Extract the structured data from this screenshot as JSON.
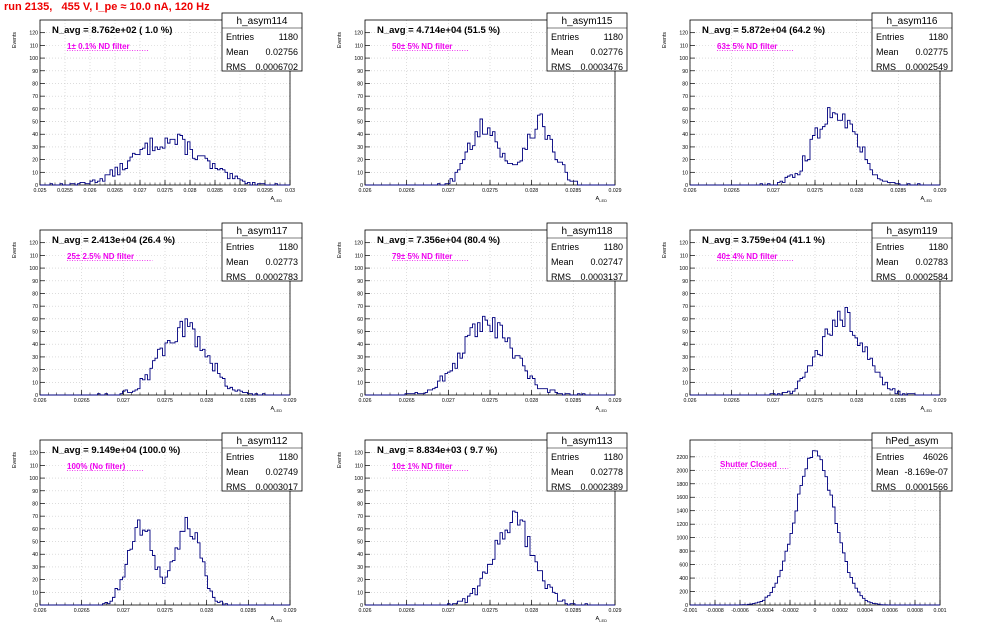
{
  "header": {
    "title": "run 2135,   455 V, I_pe ≈ 10.0 nA, 120 Hz"
  },
  "colors": {
    "histogram": "#00007f",
    "annotation": "#ee00ee",
    "title_text": "#ee0000",
    "frame": "#000000",
    "grid": "#c8c8c8"
  },
  "chart_data": [
    {
      "type": "histogram",
      "name": "h_asym114",
      "navg": "N_avg = 8.762e+02 ( 1.0 %)",
      "filter": "1± 0.1% ND filter",
      "stats": [
        [
          "Entries",
          "1180"
        ],
        [
          "Mean",
          "0.02756"
        ],
        [
          "RMS",
          "0.0006702"
        ]
      ],
      "xlabel": "A_LED",
      "ylabel": "Events",
      "xlim": [
        0.025,
        0.03
      ],
      "ylim": [
        0,
        130
      ],
      "xticks": [
        "0.025",
        "0.0255",
        "0.026",
        "0.0265",
        "0.027",
        "0.0275",
        "0.028",
        "0.0285",
        "0.029",
        "0.0295",
        "0.03"
      ],
      "yticks": [
        "0",
        "10",
        "20",
        "30",
        "40",
        "50",
        "60",
        "70",
        "80",
        "90",
        "100",
        "110",
        "120"
      ],
      "mean": 0.02756,
      "sigma": 0.00067,
      "peak": 35,
      "entries": 1180
    },
    {
      "type": "histogram",
      "name": "h_asym115",
      "navg": "N_avg = 4.714e+04 (51.5 %)",
      "filter": "50± 5% ND filter",
      "stats": [
        [
          "Entries",
          "1180"
        ],
        [
          "Mean",
          "0.02776"
        ],
        [
          "RMS",
          "0.0003476"
        ]
      ],
      "xlabel": "A_LED",
      "ylabel": "Events",
      "xlim": [
        0.026,
        0.029
      ],
      "ylim": [
        0,
        130
      ],
      "xticks": [
        "0.026",
        "0.0265",
        "0.027",
        "0.0275",
        "0.028",
        "0.0285",
        "0.029"
      ],
      "yticks": [
        "0",
        "10",
        "20",
        "30",
        "40",
        "50",
        "60",
        "70",
        "80",
        "90",
        "100",
        "110",
        "120"
      ],
      "mean": 0.02776,
      "sigma": 0.00035,
      "peak": 48,
      "entries": 1180
    },
    {
      "type": "histogram",
      "name": "h_asym116",
      "navg": "N_avg = 5.872e+04 (64.2 %)",
      "filter": "63± 5% ND filter",
      "stats": [
        [
          "Entries",
          "1180"
        ],
        [
          "Mean",
          "0.02775"
        ],
        [
          "RMS",
          "0.0002549"
        ]
      ],
      "xlabel": "A_LED",
      "ylabel": "Events",
      "xlim": [
        0.026,
        0.029
      ],
      "ylim": [
        0,
        130
      ],
      "xticks": [
        "0.026",
        "0.0265",
        "0.027",
        "0.0275",
        "0.028",
        "0.0285",
        "0.029"
      ],
      "yticks": [
        "0",
        "10",
        "20",
        "30",
        "40",
        "50",
        "60",
        "70",
        "80",
        "90",
        "100",
        "110",
        "120"
      ],
      "mean": 0.02775,
      "sigma": 0.00025,
      "peak": 60,
      "entries": 1180
    },
    {
      "type": "histogram",
      "name": "h_asym117",
      "navg": "N_avg = 2.413e+04 (26.4 %)",
      "filter": "25± 2.5% ND filter",
      "stats": [
        [
          "Entries",
          "1180"
        ],
        [
          "Mean",
          "0.02773"
        ],
        [
          "RMS",
          "0.0002783"
        ]
      ],
      "xlabel": "A_LED",
      "ylabel": "Events",
      "xlim": [
        0.026,
        0.029
      ],
      "ylim": [
        0,
        130
      ],
      "xticks": [
        "0.026",
        "0.0265",
        "0.027",
        "0.0275",
        "0.028",
        "0.0285",
        "0.029"
      ],
      "yticks": [
        "0",
        "10",
        "20",
        "30",
        "40",
        "50",
        "60",
        "70",
        "80",
        "90",
        "100",
        "110",
        "120"
      ],
      "mean": 0.02773,
      "sigma": 0.00028,
      "peak": 53,
      "entries": 1180
    },
    {
      "type": "histogram",
      "name": "h_asym118",
      "navg": "N_avg = 7.356e+04 (80.4 %)",
      "filter": "79± 5% ND filter",
      "stats": [
        [
          "Entries",
          "1180"
        ],
        [
          "Mean",
          "0.02747"
        ],
        [
          "RMS",
          "0.0003137"
        ]
      ],
      "xlabel": "A_LED",
      "ylabel": "Events",
      "xlim": [
        0.026,
        0.029
      ],
      "ylim": [
        0,
        130
      ],
      "xticks": [
        "0.026",
        "0.0265",
        "0.027",
        "0.0275",
        "0.028",
        "0.0285",
        "0.029"
      ],
      "yticks": [
        "0",
        "10",
        "20",
        "30",
        "40",
        "50",
        "60",
        "70",
        "80",
        "90",
        "100",
        "110",
        "120"
      ],
      "mean": 0.02747,
      "sigma": 0.00031,
      "peak": 55,
      "entries": 1180
    },
    {
      "type": "histogram",
      "name": "h_asym119",
      "navg": "N_avg = 3.759e+04 (41.1 %)",
      "filter": "40± 4% ND filter",
      "stats": [
        [
          "Entries",
          "1180"
        ],
        [
          "Mean",
          "0.02783"
        ],
        [
          "RMS",
          "0.0002584"
        ]
      ],
      "xlabel": "A_LED",
      "ylabel": "Events",
      "xlim": [
        0.026,
        0.029
      ],
      "ylim": [
        0,
        130
      ],
      "xticks": [
        "0.026",
        "0.0265",
        "0.027",
        "0.0275",
        "0.028",
        "0.0285",
        "0.029"
      ],
      "yticks": [
        "0",
        "10",
        "20",
        "30",
        "40",
        "50",
        "60",
        "70",
        "80",
        "90",
        "100",
        "110",
        "120"
      ],
      "mean": 0.02783,
      "sigma": 0.00026,
      "peak": 62,
      "entries": 1180
    },
    {
      "type": "histogram",
      "name": "h_asym112",
      "navg": "N_avg = 9.149e+04 (100.0 %)",
      "filter": "100% (No filter)",
      "stats": [
        [
          "Entries",
          "1180"
        ],
        [
          "Mean",
          "0.02749"
        ],
        [
          "RMS",
          "0.0003017"
        ]
      ],
      "xlabel": "A_LED",
      "ylabel": "Events",
      "xlim": [
        0.026,
        0.029
      ],
      "ylim": [
        0,
        130
      ],
      "xticks": [
        "0.026",
        "0.0265",
        "0.027",
        "0.0275",
        "0.028",
        "0.0285",
        "0.029"
      ],
      "yticks": [
        "0",
        "10",
        "20",
        "30",
        "40",
        "50",
        "60",
        "70",
        "80",
        "90",
        "100",
        "110",
        "120"
      ],
      "mean": 0.02749,
      "sigma": 0.0003,
      "peak": 63,
      "entries": 1180
    },
    {
      "type": "histogram",
      "name": "h_asym113",
      "navg": "N_avg = 8.834e+03 ( 9.7 %)",
      "filter": "10± 1% ND filter",
      "stats": [
        [
          "Entries",
          "1180"
        ],
        [
          "Mean",
          "0.02778"
        ],
        [
          "RMS",
          "0.0002389"
        ]
      ],
      "xlabel": "A_LED",
      "ylabel": "Events",
      "xlim": [
        0.026,
        0.029
      ],
      "ylim": [
        0,
        130
      ],
      "xticks": [
        "0.026",
        "0.0265",
        "0.027",
        "0.0275",
        "0.028",
        "0.0285",
        "0.029"
      ],
      "yticks": [
        "0",
        "10",
        "20",
        "30",
        "40",
        "50",
        "60",
        "70",
        "80",
        "90",
        "100",
        "110",
        "120"
      ],
      "mean": 0.02778,
      "sigma": 0.00024,
      "peak": 66,
      "entries": 1180
    },
    {
      "type": "histogram",
      "name": "hPed_asym",
      "navg": "",
      "filter": "Shutter Closed",
      "stats": [
        [
          "Entries",
          "46026"
        ],
        [
          "Mean",
          "-8.169e-07"
        ],
        [
          "RMS",
          "0.0001566"
        ]
      ],
      "xlabel": "",
      "ylabel": "",
      "xlim": [
        -0.001,
        0.001
      ],
      "ylim": [
        0,
        2450
      ],
      "xticks": [
        "-0.001",
        "-0.0008",
        "-0.0006",
        "-0.0004",
        "-0.0002",
        "0",
        "0.0002",
        "0.0004",
        "0.0006",
        "0.0008",
        "0.001"
      ],
      "yticks": [
        "0",
        "200",
        "400",
        "600",
        "800",
        "1000",
        "1200",
        "1400",
        "1600",
        "1800",
        "2000",
        "2200"
      ],
      "mean": -8.169e-07,
      "sigma": 0.000157,
      "peak": 2250,
      "entries": 46026
    }
  ]
}
